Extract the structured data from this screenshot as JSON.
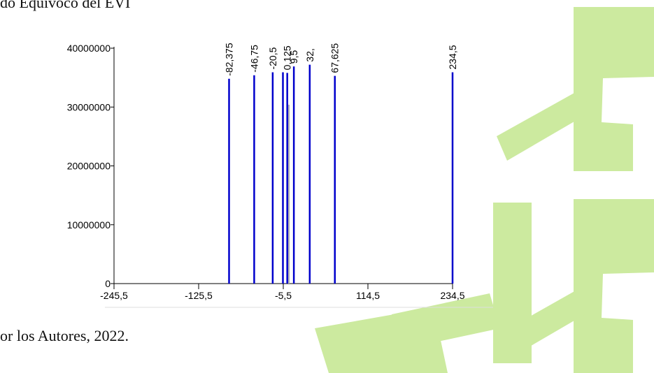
{
  "captions": {
    "top": "do Equívoco del EVI",
    "bottom": "or los Autores, 2022."
  },
  "colors": {
    "bar": "#0000cc",
    "faint_bar": "#b0b0b0",
    "axis": "#000000",
    "watermark": "#ccea9f"
  },
  "chart_data": {
    "type": "bar",
    "title": "",
    "xlabel": "",
    "ylabel": "",
    "xlim": [
      -245.5,
      234.5
    ],
    "ylim": [
      0,
      40000000
    ],
    "x_ticks": [
      {
        "value": -245.5,
        "label": "-245,5"
      },
      {
        "value": -125.5,
        "label": "-125,5"
      },
      {
        "value": -5.5,
        "label": "-5,5"
      },
      {
        "value": 114.5,
        "label": "114,5"
      },
      {
        "value": 234.5,
        "label": "234,5"
      }
    ],
    "y_ticks": [
      {
        "value": 0,
        "label": "0"
      },
      {
        "value": 10000000,
        "label": "10000000"
      },
      {
        "value": 20000000,
        "label": "20000000"
      },
      {
        "value": 30000000,
        "label": "30000000"
      },
      {
        "value": 40000000,
        "label": "40000000"
      }
    ],
    "bars": [
      {
        "x": -82.375,
        "y": 34800000,
        "label": "-82,375"
      },
      {
        "x": -46.75,
        "y": 35400000,
        "label": "-46,75"
      },
      {
        "x": -20.5,
        "y": 35900000,
        "label": "-20,5"
      },
      {
        "x": -6,
        "y": 35900000,
        "label": ""
      },
      {
        "x": 0.125,
        "y": 35800000,
        "label": "0,125"
      },
      {
        "x": 9.5,
        "y": 36900000,
        "label": "9,5"
      },
      {
        "x": 32,
        "y": 37200000,
        "label": "32,"
      },
      {
        "x": 67.625,
        "y": 35300000,
        "label": "67,625"
      },
      {
        "x": 234.5,
        "y": 35900000,
        "label": "234,5"
      }
    ],
    "faint_bars": [
      {
        "x": 2.5,
        "y": 30400000
      }
    ],
    "grid": false,
    "legend": "none"
  }
}
